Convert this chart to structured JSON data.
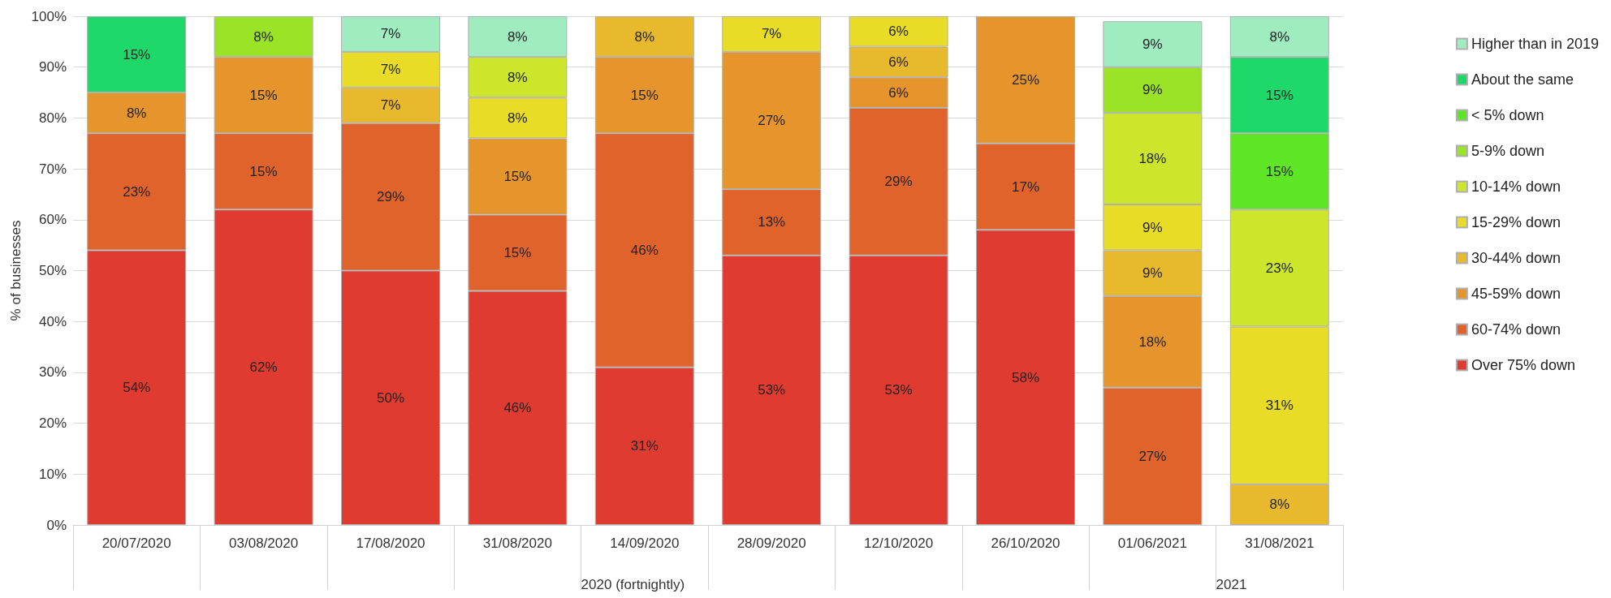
{
  "chart_data": {
    "type": "bar",
    "stacked": true,
    "ylabel": "% of businesses",
    "categories": [
      "20/07/2020",
      "03/08/2020",
      "17/08/2020",
      "31/08/2020",
      "14/09/2020",
      "28/09/2020",
      "12/10/2020",
      "26/10/2020",
      "01/06/2021",
      "31/08/2021"
    ],
    "series": [
      {
        "name": "Over 75% down",
        "color": "#df3b30",
        "values": [
          54,
          62,
          50,
          46,
          31,
          53,
          53,
          58,
          null,
          null
        ],
        "value_labels": [
          "54%",
          "62%",
          "50%",
          "46%",
          "31%",
          "53%",
          "53%",
          "58%",
          null,
          null
        ]
      },
      {
        "name": "60-74% down",
        "color": "#e0632c",
        "values": [
          23,
          15,
          29,
          15,
          46,
          13,
          29,
          17,
          27,
          null
        ],
        "value_labels": [
          "23%",
          "15%",
          "29%",
          "15%",
          "46%",
          "13%",
          "29%",
          "17%",
          "27%",
          null
        ]
      },
      {
        "name": "45-59% down",
        "color": "#e5952c",
        "values": [
          8,
          15,
          null,
          15,
          15,
          27,
          6,
          25,
          18,
          null
        ],
        "value_labels": [
          "8%",
          "15%",
          null,
          "15%",
          "15%",
          "27%",
          "6%",
          "25%",
          "18%",
          null
        ]
      },
      {
        "name": "30-44% down",
        "color": "#e8b92c",
        "values": [
          null,
          null,
          7,
          null,
          8,
          null,
          6,
          null,
          9,
          8
        ],
        "value_labels": [
          null,
          null,
          "7%",
          null,
          "8%",
          null,
          "6%",
          null,
          "9%",
          "8%"
        ]
      },
      {
        "name": "15-29% down",
        "color": "#e8dc26",
        "values": [
          null,
          null,
          7,
          8,
          null,
          7,
          6,
          null,
          9,
          31
        ],
        "value_labels": [
          null,
          null,
          "7%",
          "8%",
          null,
          "7%",
          "6%",
          null,
          "9%",
          "31%"
        ]
      },
      {
        "name": "10-14% down",
        "color": "#cde62c",
        "values": [
          null,
          null,
          null,
          8,
          null,
          null,
          null,
          null,
          18,
          23
        ],
        "value_labels": [
          null,
          null,
          null,
          "8%",
          null,
          null,
          null,
          null,
          "18%",
          "23%"
        ]
      },
      {
        "name": "5-9% down",
        "color": "#9be326",
        "values": [
          null,
          8,
          null,
          null,
          null,
          null,
          null,
          null,
          9,
          null
        ],
        "value_labels": [
          null,
          "8%",
          null,
          null,
          null,
          null,
          null,
          null,
          "9%",
          null
        ]
      },
      {
        "name": "< 5% down",
        "color": "#5ee626",
        "values": [
          null,
          null,
          null,
          null,
          null,
          null,
          null,
          null,
          null,
          15
        ],
        "value_labels": [
          null,
          null,
          null,
          null,
          null,
          null,
          null,
          null,
          null,
          "15%"
        ]
      },
      {
        "name": "About the same",
        "color": "#1ed86a",
        "values": [
          15,
          null,
          null,
          null,
          null,
          null,
          null,
          null,
          null,
          15
        ],
        "value_labels": [
          "15%",
          null,
          null,
          null,
          null,
          null,
          null,
          null,
          null,
          "15%"
        ]
      },
      {
        "name": "Higher than in 2019",
        "color": "#9eecc0",
        "values": [
          null,
          null,
          7,
          8,
          null,
          null,
          null,
          null,
          9,
          8
        ],
        "value_labels": [
          null,
          null,
          "7%",
          "8%",
          null,
          null,
          null,
          null,
          "9%",
          "8%"
        ]
      }
    ],
    "ylim": [
      0,
      100
    ],
    "yticks": [
      {
        "value": 0,
        "label": "0%"
      },
      {
        "value": 10,
        "label": "10%"
      },
      {
        "value": 20,
        "label": "20%"
      },
      {
        "value": 30,
        "label": "30%"
      },
      {
        "value": 40,
        "label": "40%"
      },
      {
        "value": 50,
        "label": "50%"
      },
      {
        "value": 60,
        "label": "60%"
      },
      {
        "value": 70,
        "label": "70%"
      },
      {
        "value": 80,
        "label": "80%"
      },
      {
        "value": 90,
        "label": "90%"
      },
      {
        "value": 100,
        "label": "100%"
      }
    ],
    "grid": "y",
    "legend": "right",
    "annotations": [
      "2020 (fortnightly)",
      "2021"
    ]
  }
}
